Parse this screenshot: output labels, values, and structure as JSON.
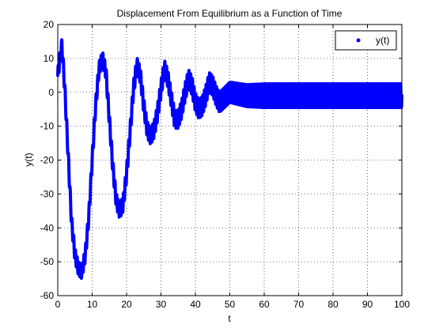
{
  "chart_data": {
    "type": "line",
    "title": "Displacement From Equilibrium as a Function of Time",
    "xlabel": "t",
    "ylabel": "y(t)",
    "xlim": [
      0,
      100
    ],
    "ylim": [
      -60,
      20
    ],
    "xticks": [
      0,
      10,
      20,
      30,
      40,
      50,
      60,
      70,
      80,
      90,
      100
    ],
    "yticks": [
      -60,
      -50,
      -40,
      -30,
      -20,
      -10,
      0,
      10,
      20
    ],
    "grid": true,
    "legend_position": "top-right",
    "series": [
      {
        "name": "y(t)",
        "color": "#0000ff",
        "marker": "point",
        "envelope": [
          {
            "t": 0,
            "y": 5
          },
          {
            "t": 1.2,
            "y": 14
          },
          {
            "t": 2,
            "y": 2
          },
          {
            "t": 3,
            "y": -18
          },
          {
            "t": 4,
            "y": -38
          },
          {
            "t": 5,
            "y": -48
          },
          {
            "t": 6,
            "y": -52
          },
          {
            "t": 7,
            "y": -53
          },
          {
            "t": 8,
            "y": -48
          },
          {
            "t": 9,
            "y": -37
          },
          {
            "t": 10,
            "y": -20
          },
          {
            "t": 11,
            "y": -4
          },
          {
            "t": 12,
            "y": 7
          },
          {
            "t": 13,
            "y": 10
          },
          {
            "t": 14,
            "y": 6
          },
          {
            "t": 15,
            "y": -8
          },
          {
            "t": 16,
            "y": -22
          },
          {
            "t": 17,
            "y": -32
          },
          {
            "t": 18,
            "y": -35
          },
          {
            "t": 19,
            "y": -33
          },
          {
            "t": 20,
            "y": -24
          },
          {
            "t": 21,
            "y": -12
          },
          {
            "t": 22,
            "y": 1
          },
          {
            "t": 23,
            "y": 8
          },
          {
            "t": 24,
            "y": 5
          },
          {
            "t": 25,
            "y": -4
          },
          {
            "t": 26,
            "y": -11
          },
          {
            "t": 27,
            "y": -13
          },
          {
            "t": 28,
            "y": -11
          },
          {
            "t": 29,
            "y": -6
          },
          {
            "t": 30,
            "y": 1
          },
          {
            "t": 31,
            "y": 7
          },
          {
            "t": 32,
            "y": 4
          },
          {
            "t": 33,
            "y": -2
          },
          {
            "t": 34,
            "y": -8
          },
          {
            "t": 35,
            "y": -8
          },
          {
            "t": 36,
            "y": -5
          },
          {
            "t": 37,
            "y": 0
          },
          {
            "t": 38,
            "y": 4
          },
          {
            "t": 39,
            "y": 2
          },
          {
            "t": 40,
            "y": -3
          },
          {
            "t": 41,
            "y": -5
          },
          {
            "t": 42,
            "y": -4
          },
          {
            "t": 43,
            "y": -1
          },
          {
            "t": 44,
            "y": 3
          },
          {
            "t": 45,
            "y": 2
          },
          {
            "t": 46,
            "y": -1
          },
          {
            "t": 47,
            "y": -3
          },
          {
            "t": 48,
            "y": -2
          },
          {
            "t": 50,
            "y": 0
          },
          {
            "t": 55,
            "y": -1
          },
          {
            "t": 60,
            "y": -1
          },
          {
            "t": 70,
            "y": -1
          },
          {
            "t": 80,
            "y": -1
          },
          {
            "t": 90,
            "y": -1
          },
          {
            "t": 100,
            "y": -1
          }
        ],
        "ripple_amplitude": [
          {
            "t": 0,
            "a": 2
          },
          {
            "t": 10,
            "a": 2
          },
          {
            "t": 30,
            "a": 2.5
          },
          {
            "t": 50,
            "a": 3
          },
          {
            "t": 60,
            "a": 3.5
          },
          {
            "t": 100,
            "a": 3.5
          }
        ],
        "ripple_period": 0.5
      }
    ]
  }
}
